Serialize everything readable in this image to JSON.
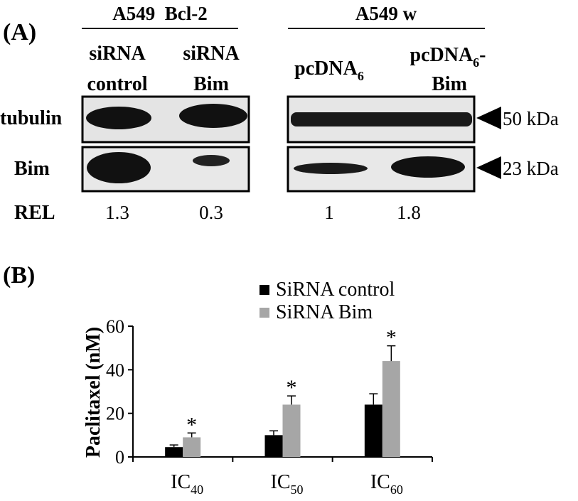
{
  "panel_a": {
    "label": "(A)",
    "groups": [
      {
        "title": "A549  Bcl-2"
      },
      {
        "title": "A549 w"
      }
    ],
    "lanes": [
      {
        "line1": "siRNA",
        "line2": "control"
      },
      {
        "line1": "siRNA",
        "line2": "Bim"
      },
      {
        "base": "pcDNA",
        "sub": "6"
      },
      {
        "base": "pcDNA",
        "sub": "6",
        "tail": "-",
        "line2": "Bim"
      }
    ],
    "rows": [
      "tubulin",
      "Bim",
      "REL"
    ],
    "rel": [
      1.3,
      0.3,
      1,
      1.8
    ],
    "markers": [
      "50 kDa",
      "23 kDa"
    ]
  },
  "chart_data": {
    "type": "bar",
    "label": "(B)",
    "y_label": "Paclitaxel (nM)",
    "categories": [
      {
        "base": "IC",
        "sub": "40"
      },
      {
        "base": "IC",
        "sub": "50"
      },
      {
        "base": "IC",
        "sub": "60"
      }
    ],
    "series": [
      {
        "name": "SiRNA control",
        "color": "#000000",
        "values": [
          4.5,
          10,
          24
        ],
        "errors": [
          1,
          2,
          5
        ]
      },
      {
        "name": "SiRNA Bim",
        "color": "#a6a6a6",
        "values": [
          9,
          24,
          44
        ],
        "errors": [
          2,
          4,
          7
        ]
      }
    ],
    "significance": [
      "*",
      "*",
      "*"
    ],
    "ylim": [
      0,
      60
    ],
    "yticks": [
      0,
      20,
      40,
      60
    ]
  }
}
